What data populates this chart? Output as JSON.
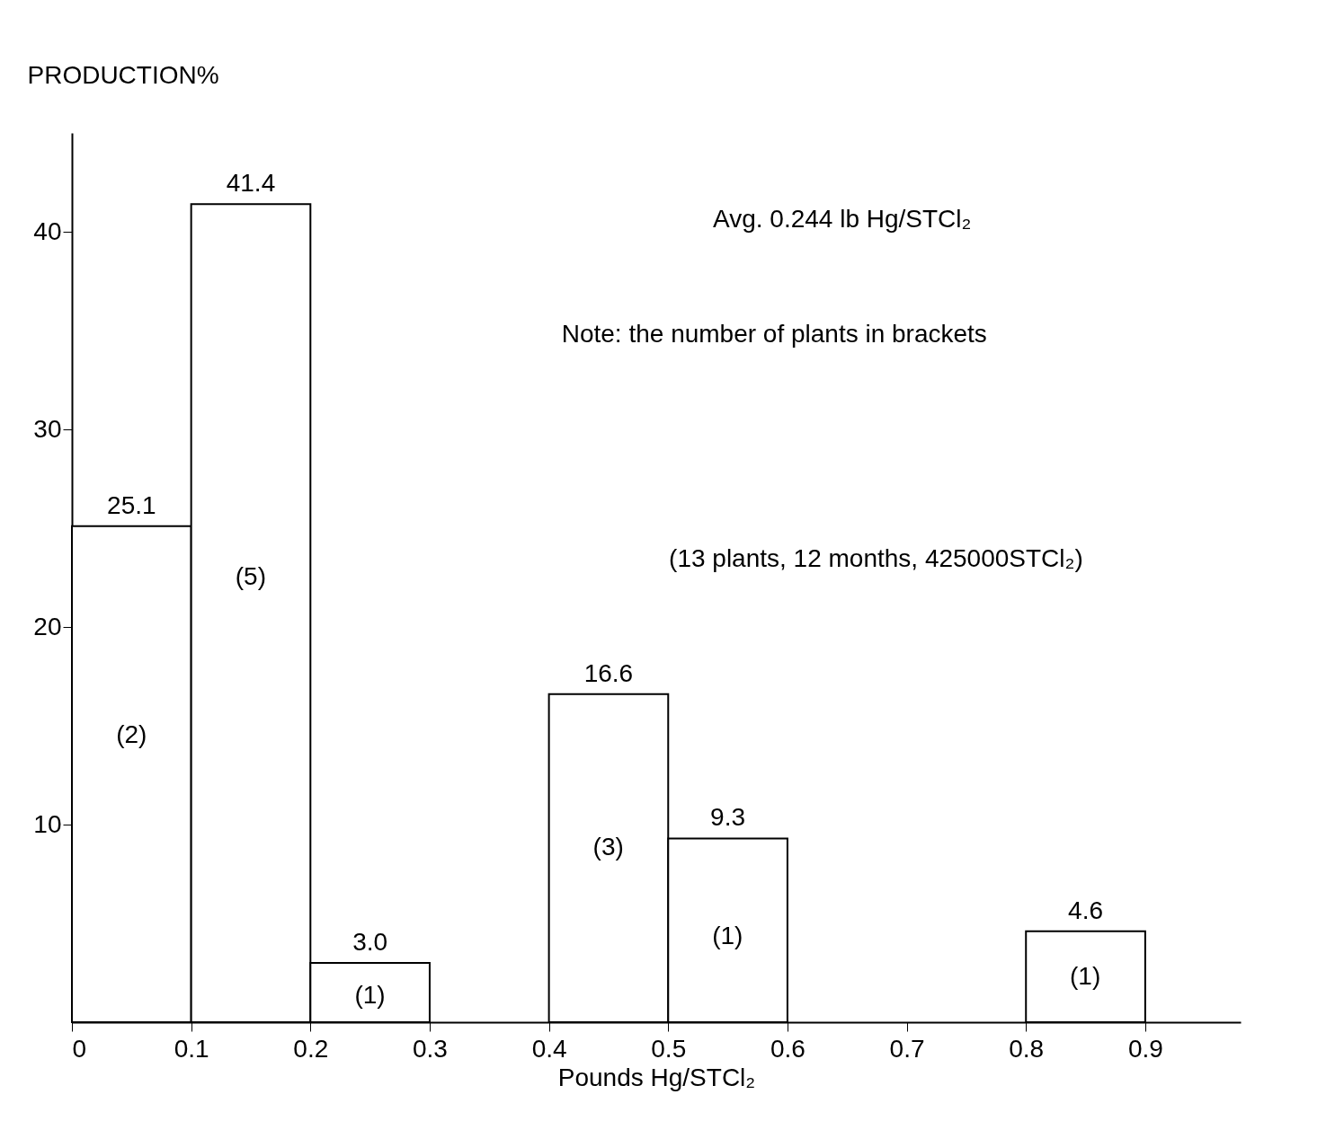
{
  "chart_data": {
    "type": "histogram",
    "xlabel": "Pounds Hg/STCl₂",
    "ylabel": "PRODUCTION%",
    "bins": [
      0,
      0.1,
      0.2,
      0.3,
      0.4,
      0.5,
      0.6,
      0.7,
      0.8,
      0.9
    ],
    "values": [
      25.1,
      41.4,
      3.0,
      null,
      16.6,
      9.3,
      null,
      null,
      4.6
    ],
    "value_labels": [
      "25.1",
      "41.4",
      "3.0",
      null,
      "16.6",
      "9.3",
      null,
      null,
      "4.6"
    ],
    "color": "#ffffff",
    "xlim": [
      0,
      0.98
    ],
    "ylim": [
      0,
      45
    ],
    "xticks": [
      0,
      0.1,
      0.2,
      0.3,
      0.4,
      0.5,
      0.6,
      0.7,
      0.8,
      0.9
    ],
    "yticks": [
      10,
      20,
      30,
      40
    ],
    "grid": false,
    "annotations": [
      "Avg. 0.244 lb Hg/STCl₂",
      "Note: the number of plants in brackets",
      "(13 plants, 12 months, 425000STCl₂)",
      "(2)",
      "(5)",
      "(1)",
      "(3)",
      "(1)",
      "(1)"
    ]
  }
}
